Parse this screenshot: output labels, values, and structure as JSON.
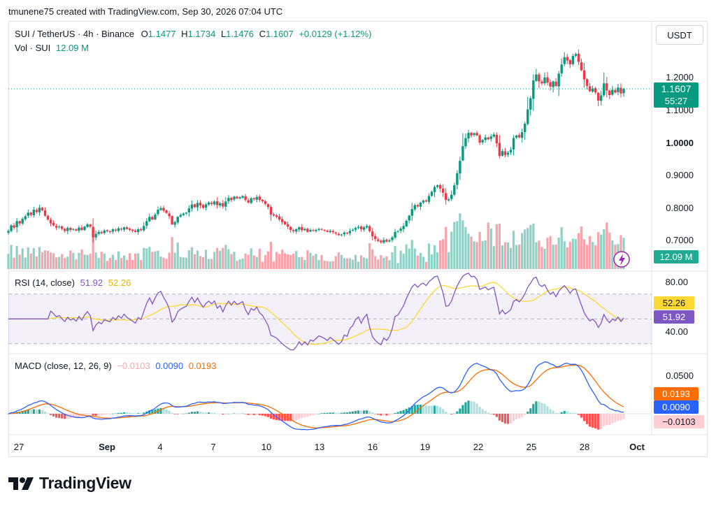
{
  "credit": "tmunene75 created with TradingView.com, Sep 30, 2026 07:04 UTC",
  "brand": "TradingView",
  "unit_button": "USDT",
  "price_legend": {
    "symbol": "SUI / TetherUS · 4h · Binance",
    "o_label": "O",
    "o_value": "1.1477",
    "h_label": "H",
    "h_value": "1.1734",
    "l_label": "L",
    "l_value": "1.1476",
    "c_label": "C",
    "c_value": "1.1607",
    "change": "+0.0129 (+1.12%)"
  },
  "vol_legend": {
    "label": "Vol · SUI",
    "value": "12.09 M"
  },
  "rsi_legend": {
    "label": "RSI (14, close)",
    "rsi_value": "51.92",
    "ma_value": "52.26"
  },
  "macd_legend": {
    "label": "MACD (close, 12, 26, 9)",
    "hist_value": "−0.0103",
    "macd_value": "0.0090",
    "signal_value": "0.0193"
  },
  "price_axis": [
    "1.2000",
    "1.1000",
    "1.0000",
    "0.9000",
    "0.8000",
    "0.7000"
  ],
  "price_tag": {
    "price": "1.1607",
    "countdown": "55:27"
  },
  "volume_tag": "12.09 M",
  "rsi_axis": [
    "80.00",
    "40.00"
  ],
  "rsi_tags": {
    "ma": "52.26",
    "rsi": "51.92"
  },
  "macd_axis": [
    "0.0500"
  ],
  "macd_tags": {
    "signal": "0.0193",
    "macd": "0.0090",
    "hist": "−0.0103"
  },
  "x_axis": [
    "27",
    "Sep",
    "4",
    "7",
    "10",
    "13",
    "16",
    "19",
    "22",
    "25",
    "28",
    "Oct"
  ],
  "colors": {
    "up": "#089981",
    "down": "#f23645",
    "vol_up": "#90d1c6",
    "vol_down": "#f5a4ab",
    "rsi": "#7e57c2",
    "rsi_ma": "#fdd835",
    "macd": "#2962ff",
    "signal": "#ff6d00",
    "hist_up_strong": "#26a69a",
    "hist_up_weak": "#b2dfdb",
    "hist_down_strong": "#ff5252",
    "hist_down_weak": "#ffcdd2"
  },
  "chart_data": {
    "type": "candlestick",
    "interval": "4h",
    "x_range": [
      "Aug 26",
      "Oct 1"
    ],
    "price_axis_range": [
      0.66,
      1.27
    ],
    "closes": [
      0.725,
      0.742,
      0.735,
      0.755,
      0.748,
      0.762,
      0.77,
      0.781,
      0.774,
      0.79,
      0.783,
      0.796,
      0.788,
      0.771,
      0.76,
      0.748,
      0.742,
      0.735,
      0.738,
      0.731,
      0.725,
      0.734,
      0.728,
      0.731,
      0.726,
      0.735,
      0.728,
      0.738,
      0.745,
      0.738,
      0.705,
      0.716,
      0.722,
      0.718,
      0.726,
      0.724,
      0.722,
      0.73,
      0.726,
      0.733,
      0.729,
      0.736,
      0.731,
      0.728,
      0.725,
      0.722,
      0.73,
      0.727,
      0.74,
      0.755,
      0.768,
      0.76,
      0.775,
      0.79,
      0.795,
      0.787,
      0.78,
      0.77,
      0.745,
      0.752,
      0.768,
      0.774,
      0.778,
      0.781,
      0.794,
      0.806,
      0.798,
      0.811,
      0.803,
      0.796,
      0.806,
      0.812,
      0.808,
      0.815,
      0.804,
      0.81,
      0.8,
      0.815,
      0.826,
      0.82,
      0.83,
      0.825,
      0.828,
      0.832,
      0.82,
      0.812,
      0.825,
      0.822,
      0.829,
      0.82,
      0.816,
      0.808,
      0.798,
      0.775,
      0.772,
      0.768,
      0.76,
      0.752,
      0.745,
      0.738,
      0.728,
      0.724,
      0.73,
      0.736,
      0.727,
      0.731,
      0.722,
      0.728,
      0.725,
      0.728,
      0.731,
      0.729,
      0.726,
      0.722,
      0.725,
      0.721,
      0.717,
      0.712,
      0.714,
      0.72,
      0.718,
      0.725,
      0.728,
      0.734,
      0.737,
      0.73,
      0.736,
      0.74,
      0.724,
      0.708,
      0.7,
      0.694,
      0.69,
      0.697,
      0.692,
      0.696,
      0.705,
      0.722,
      0.724,
      0.732,
      0.74,
      0.756,
      0.772,
      0.792,
      0.804,
      0.8,
      0.812,
      0.818,
      0.815,
      0.832,
      0.845,
      0.86,
      0.865,
      0.855,
      0.842,
      0.82,
      0.822,
      0.836,
      0.865,
      0.902,
      0.94,
      0.985,
      1.01,
      1.026,
      1.018,
      1.025,
      1.018,
      0.996,
      1.004,
      1.012,
      1.006,
      1.015,
      1.021,
      0.994,
      0.955,
      0.97,
      0.958,
      0.965,
      0.974,
      1.01,
      1.018,
      1.012,
      1.028,
      1.054,
      1.098,
      1.132,
      1.187,
      1.205,
      1.184,
      1.178,
      1.196,
      1.18,
      1.168,
      1.184,
      1.17,
      1.208,
      1.236,
      1.258,
      1.248,
      1.236,
      1.262,
      1.268,
      1.244,
      1.218,
      1.19,
      1.17,
      1.154,
      1.162,
      1.15,
      1.125,
      1.141,
      1.178,
      1.156,
      1.142,
      1.158,
      1.15,
      1.165,
      1.147,
      1.161
    ],
    "volume_shape": "higher volume during the Sep 19–28 rally, peaks near Sep 21 and Sep 27",
    "rsi": {
      "value": 51.92,
      "ma": 52.26,
      "range": [
        30,
        85
      ],
      "bands": [
        30,
        70
      ]
    },
    "macd": {
      "macd": 0.009,
      "signal": 0.0193,
      "histogram": -0.0103
    }
  }
}
